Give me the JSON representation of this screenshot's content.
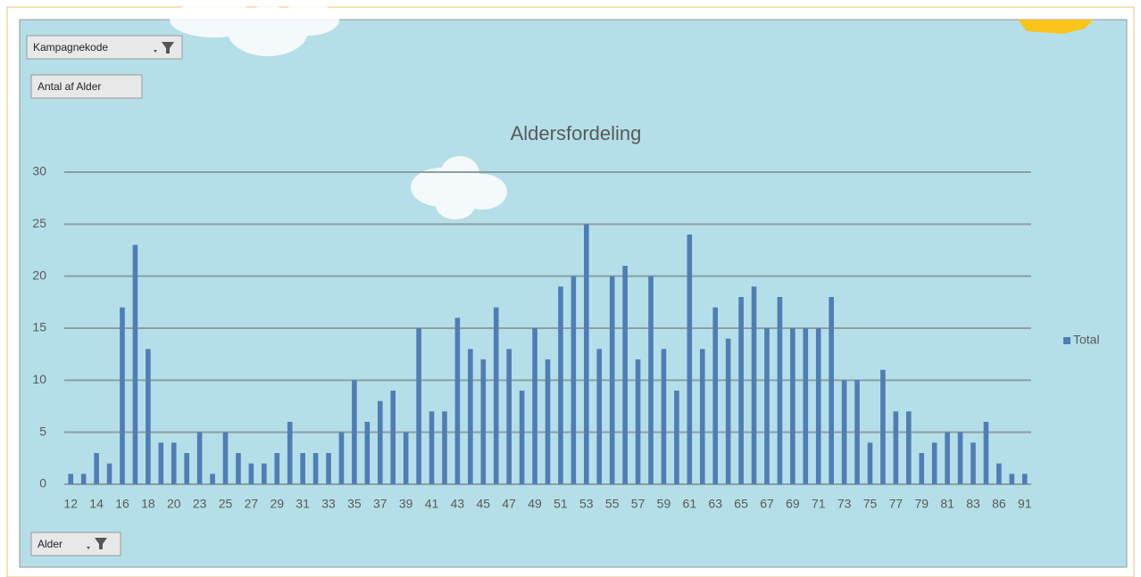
{
  "filters": {
    "report_filter": "Kampagnekode",
    "value_field": "Antal af Alder",
    "axis_field": "Alder"
  },
  "chart_data": {
    "type": "bar",
    "title": "Aldersfordeling",
    "categories": [
      "12",
      null,
      "14",
      null,
      "16",
      null,
      "18",
      null,
      "20",
      null,
      "23",
      null,
      "25",
      null,
      "27",
      null,
      "29",
      null,
      "31",
      null,
      "33",
      null,
      "35",
      null,
      "37",
      null,
      "39",
      null,
      "41",
      null,
      "43",
      null,
      "45",
      null,
      "47",
      null,
      "49",
      null,
      "51",
      null,
      "53",
      null,
      "55",
      null,
      "57",
      null,
      "59",
      null,
      "61",
      null,
      "63",
      null,
      "65",
      null,
      "67",
      null,
      "69",
      null,
      "71",
      null,
      "73",
      null,
      "75",
      null,
      "77",
      null,
      "79",
      null,
      "81",
      null,
      "83",
      null,
      "86",
      null,
      "91"
    ],
    "series": [
      {
        "name": "Total",
        "color": "#4f7db5",
        "values": [
          1,
          1,
          3,
          2,
          17,
          23,
          13,
          4,
          4,
          3,
          5,
          1,
          5,
          3,
          2,
          2,
          3,
          6,
          3,
          3,
          3,
          5,
          10,
          6,
          8,
          9,
          5,
          15,
          7,
          7,
          16,
          13,
          12,
          17,
          13,
          9,
          15,
          12,
          19,
          20,
          25,
          13,
          20,
          21,
          12,
          20,
          13,
          9,
          24,
          13,
          17,
          14,
          18,
          19,
          15,
          18,
          15,
          15,
          15,
          18,
          10,
          10,
          4,
          11,
          7,
          7,
          3,
          4,
          5,
          5,
          4,
          6,
          2,
          1,
          1
        ]
      }
    ],
    "ylim": [
      0,
      30
    ],
    "yticks": [
      0,
      5,
      10,
      15,
      20,
      25,
      30
    ],
    "grid": true,
    "legend": "right"
  }
}
